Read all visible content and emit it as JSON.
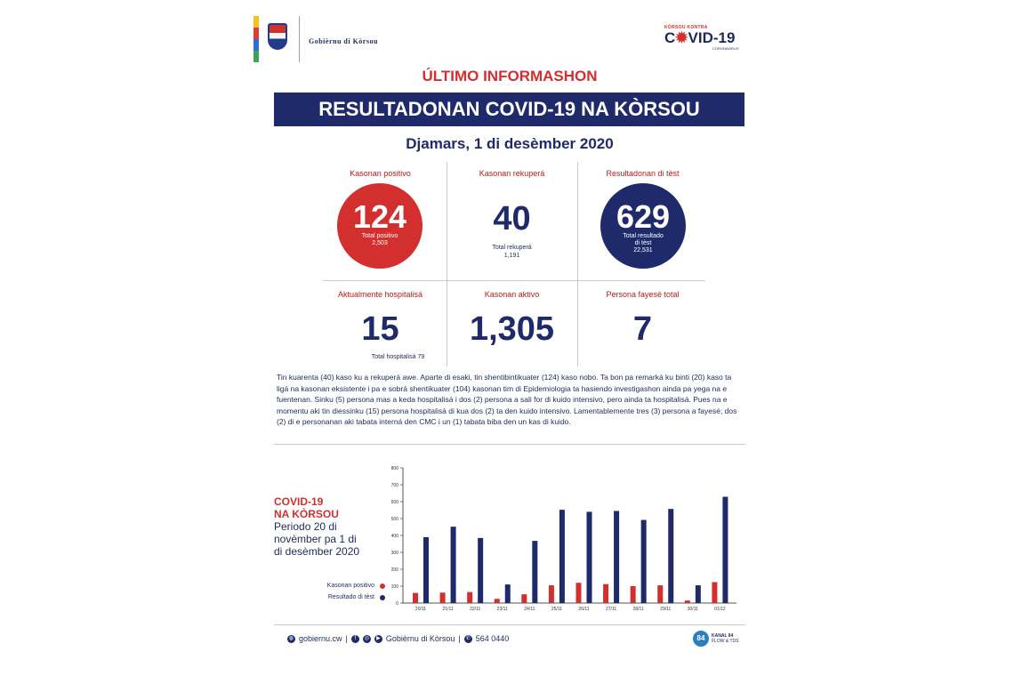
{
  "header": {
    "gov_name": "Gobièrnu di Kòrsou",
    "logo": {
      "small": "KÒRSOU KONTRA",
      "big_prefix": "C",
      "big_suffix": "VID-19",
      "sub": "CORONAVIRUS"
    }
  },
  "ultimo": "ÚLTIMO INFORMASHON",
  "banner": "RESULTADONAN COVID-19 NA KÒRSOU",
  "date": "Djamars, 1 di desèmber 2020",
  "stats": {
    "positivo": {
      "label": "Kasonan positivo",
      "value": "124",
      "sub1": "Total positivo",
      "sub2": "2,503"
    },
    "rekupera": {
      "label": "Kasonan rekuperá",
      "value": "40",
      "sub1": "Total rekuperá",
      "sub2": "1,191"
    },
    "test": {
      "label": "Resultadonan di tèst",
      "value": "629",
      "sub1": "Total resultado",
      "sub2": "di tèst",
      "sub3": "22,531"
    },
    "hospitalisa": {
      "label": "Aktualmente hospitalisá",
      "value": "15",
      "sub": "Total hospitalisá 79"
    },
    "aktivo": {
      "label": "Kasonan aktivo",
      "value": "1,305"
    },
    "fayese": {
      "label": "Persona fayesé total",
      "value": "7"
    }
  },
  "paragraph": "Tin kuarenta (40) kaso ku a rekuperá awe. Aparte di esaki, tin shentibintikuater (124) kaso nobo. Ta bon pa remarká ku binti (20) kaso ta ligá na kasonan eksistente i pa e sobrá shentikuater (104) kasonan tim di Epidemiologia ta hasiendo investigashon ainda pa yega na e fuentenan. Sinku (5) persona mas a keda hospitalisá i dos (2) persona a sali for di kuido intensivo, pero ainda ta hospitalisá. Pues na e momentu aki tin diessinku (15) persona hospitalisá di kua dos (2) ta den kuido intensivo. Lamentablemente tres (3) persona a fayesé; dos (2) di e personanan aki tabata interná den CMC i un (1) tabata biba den un kas di kuido.",
  "chart_title": {
    "line1": "COVID-19",
    "line2": "NA KÒRSOU",
    "line3": "Periodo 20 di",
    "line4": "novèmber pa 1 di",
    "line5": "di desèmber 2020"
  },
  "chart_data": {
    "type": "bar",
    "categories": [
      "20/11",
      "21/11",
      "22/11",
      "23/11",
      "24/11",
      "25/11",
      "26/11",
      "27/11",
      "28/11",
      "29/11",
      "30/11",
      "01/12"
    ],
    "series": [
      {
        "name": "Kasonan positivo",
        "color": "#d32f2f",
        "values": [
          60,
          62,
          65,
          25,
          52,
          105,
          120,
          112,
          100,
          105,
          15,
          124
        ]
      },
      {
        "name": "Resultado di tèst",
        "color": "#1f2a6b",
        "values": [
          390,
          452,
          385,
          110,
          368,
          552,
          540,
          545,
          492,
          557,
          105,
          629
        ]
      }
    ],
    "ylim": [
      0,
      800
    ],
    "yticks": [
      0,
      100,
      200,
      300,
      400,
      500,
      600,
      700,
      800
    ],
    "grid": false,
    "legend": "left"
  },
  "footer": {
    "web": "gobiernu.cw",
    "social": "Gobièrnu di Kòrsou",
    "phone": "564 0440",
    "kanal_badge": "84",
    "kanal_name": "KANAL 84",
    "kanal_sub": "FLOW & TDS"
  }
}
